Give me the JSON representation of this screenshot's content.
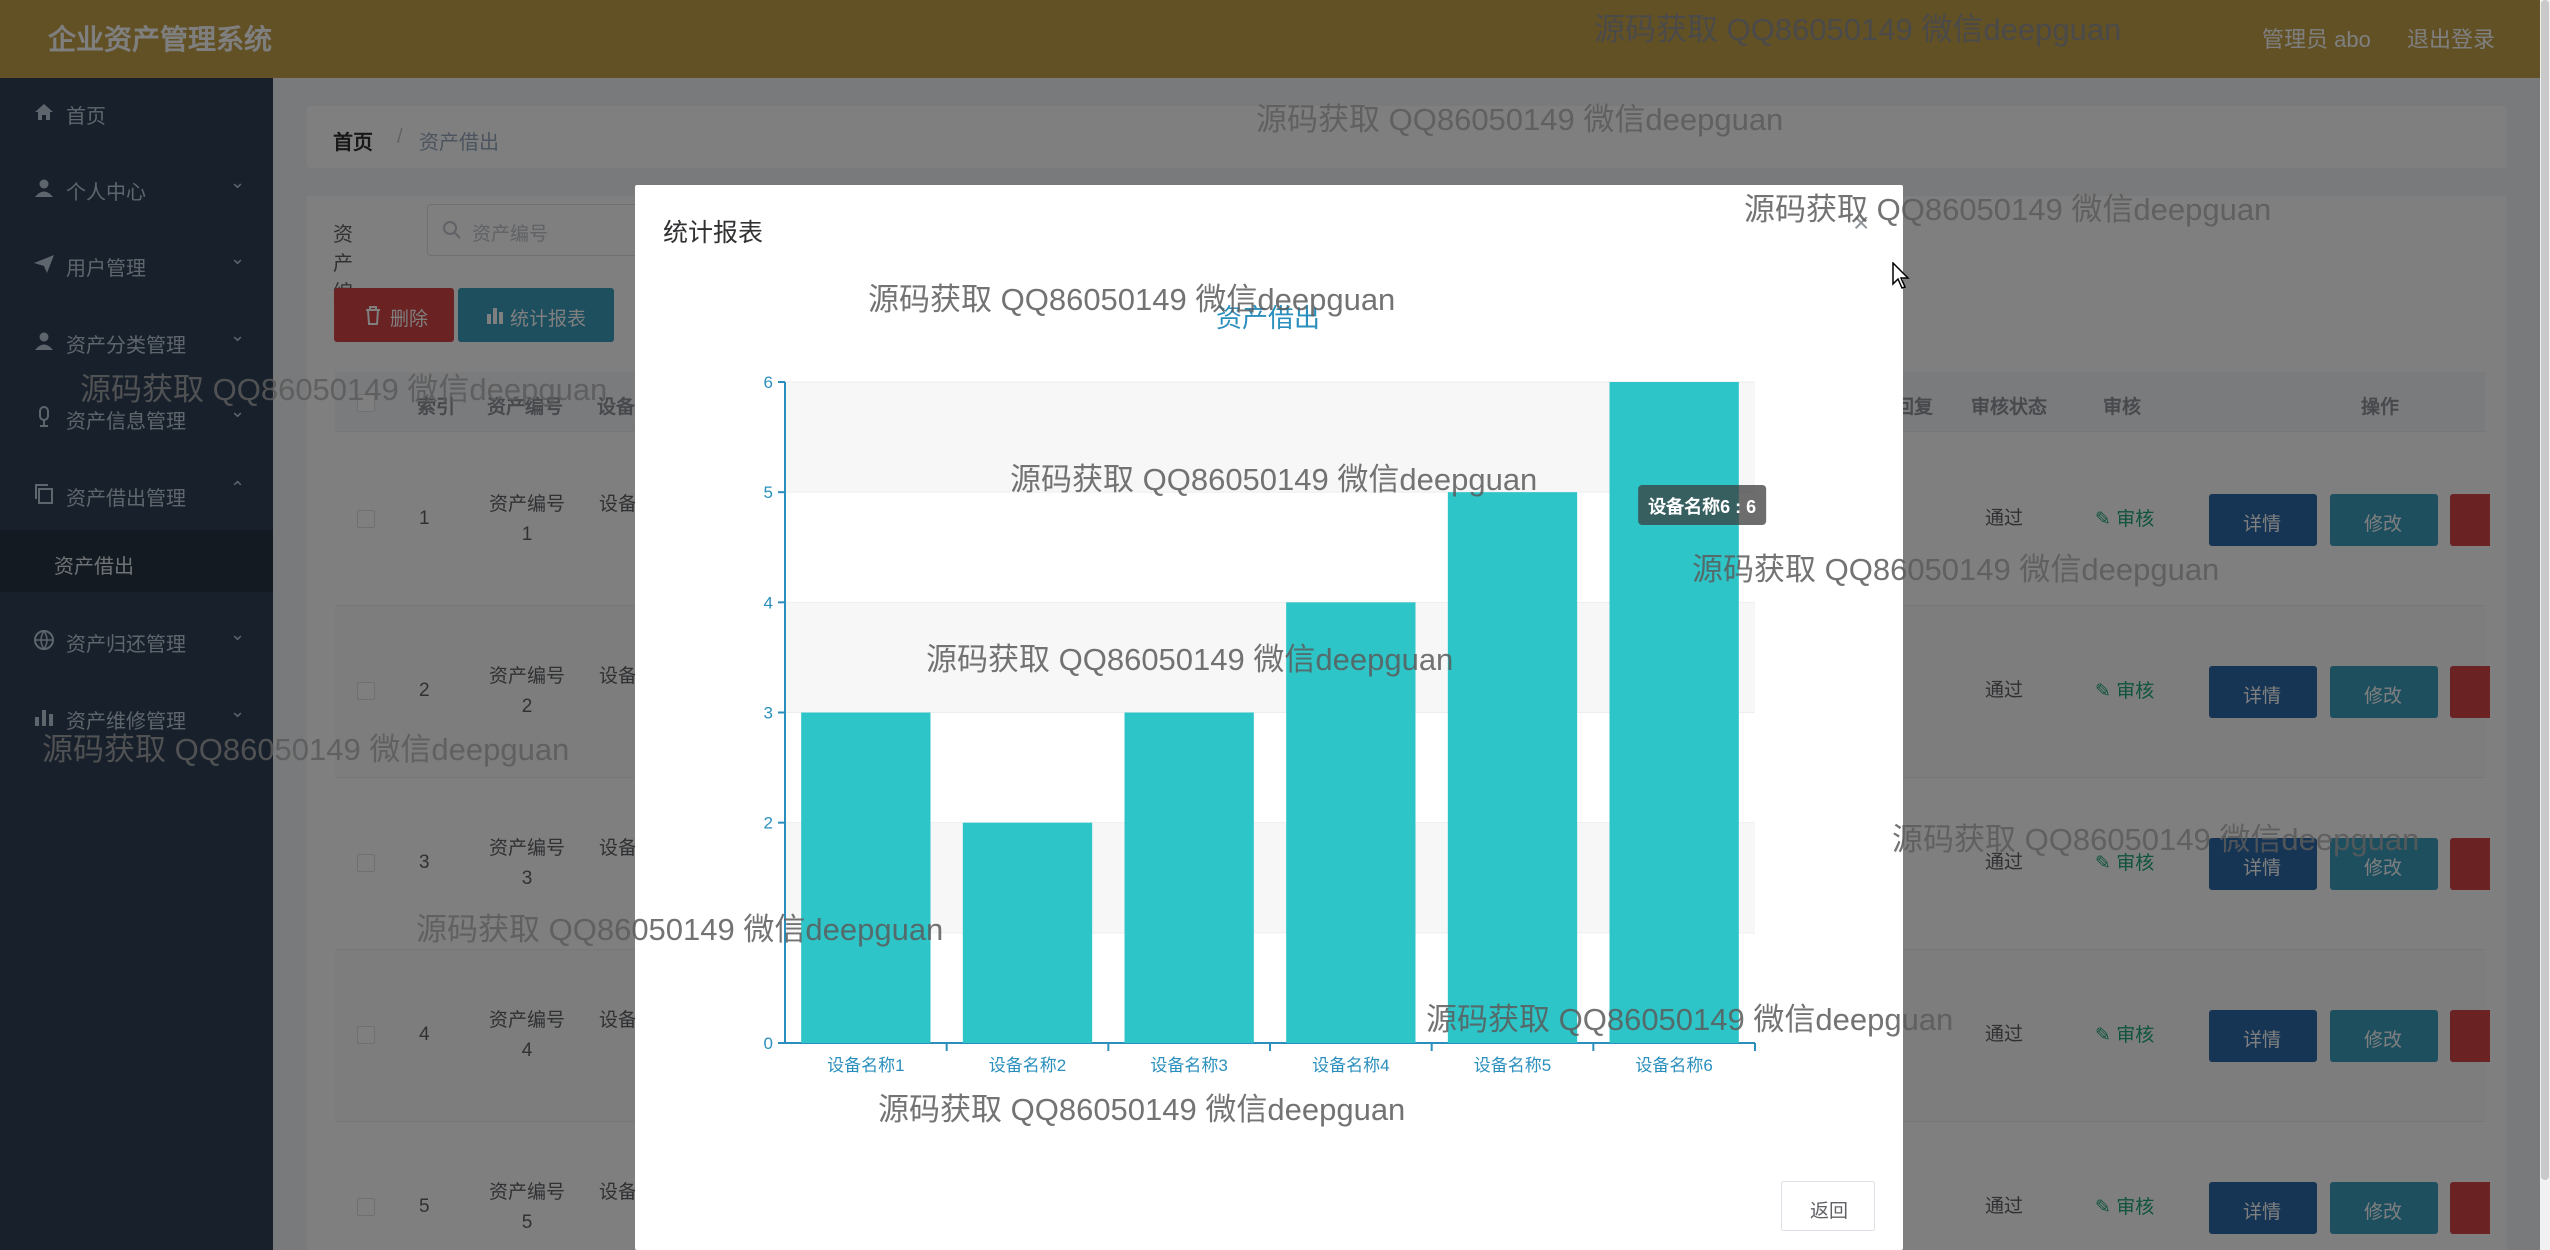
{
  "header": {
    "app_title": "企业资产管理系统",
    "user_label": "管理员 abo",
    "logout": "退出登录"
  },
  "sidebar": {
    "items": [
      {
        "label": "首页",
        "icon": "home-icon"
      },
      {
        "label": "个人中心",
        "icon": "user-icon"
      },
      {
        "label": "用户管理",
        "icon": "send-icon"
      },
      {
        "label": "资产分类管理",
        "icon": "user-icon"
      },
      {
        "label": "资产信息管理",
        "icon": "microphone-icon"
      },
      {
        "label": "资产借出管理",
        "icon": "copy-icon"
      },
      {
        "label": "资产归还管理",
        "icon": "globe-icon"
      },
      {
        "label": "资产维修管理",
        "icon": "bar-chart-icon"
      }
    ],
    "sub_item": "资产借出"
  },
  "breadcrumb": {
    "home": "首页",
    "separator": "/",
    "current": "资产借出"
  },
  "search": {
    "label": "资产编号",
    "placeholder": "资产编号"
  },
  "toolbar": {
    "delete_label": "删除",
    "stats_label": "统计报表"
  },
  "table": {
    "headers": {
      "index": "索引",
      "asset_no": "资产编号",
      "device": "设备",
      "reply": "回复",
      "audit_status": "审核状态",
      "audit": "审核",
      "actions": "操作"
    },
    "rows": [
      {
        "index": "1",
        "asset_no_line1": "资产编号",
        "asset_no_line2": "1",
        "device": "设备",
        "status": "通过"
      },
      {
        "index": "2",
        "asset_no_line1": "资产编号",
        "asset_no_line2": "2",
        "device": "设备",
        "status": "通过"
      },
      {
        "index": "3",
        "asset_no_line1": "资产编号",
        "asset_no_line2": "3",
        "device": "设备",
        "status": "通过"
      },
      {
        "index": "4",
        "asset_no_line1": "资产编号",
        "asset_no_line2": "4",
        "device": "设备",
        "status": "通过"
      },
      {
        "index": "5",
        "asset_no_line1": "资产编号",
        "asset_no_line2": "5",
        "device": "设备",
        "status": "通过"
      }
    ],
    "audit_label": "审核",
    "detail_label": "详情",
    "edit_label": "修改"
  },
  "dialog": {
    "title": "统计报表",
    "back_label": "返回"
  },
  "chart_data": {
    "type": "bar",
    "title": "资产借出",
    "categories": [
      "设备名称1",
      "设备名称2",
      "设备名称3",
      "设备名称4",
      "设备名称5",
      "设备名称6"
    ],
    "values": [
      3,
      2,
      3,
      4,
      5,
      6
    ],
    "ylim": [
      0,
      6
    ],
    "yticks": [
      0,
      2,
      3,
      4,
      5,
      6
    ],
    "bar_color": "#2ec5c9",
    "axis_color": "#2a8fbd",
    "title_color": "#2a8fbd",
    "tooltip": "设备名称6 : 6"
  },
  "watermark": "源码获取 QQ86050149 微信deepguan",
  "colors": {
    "header": "#c6a24c",
    "sidebar": "#304156",
    "danger": "#d74545",
    "primary": "#2d6aa8",
    "info": "#3a9ebf"
  }
}
